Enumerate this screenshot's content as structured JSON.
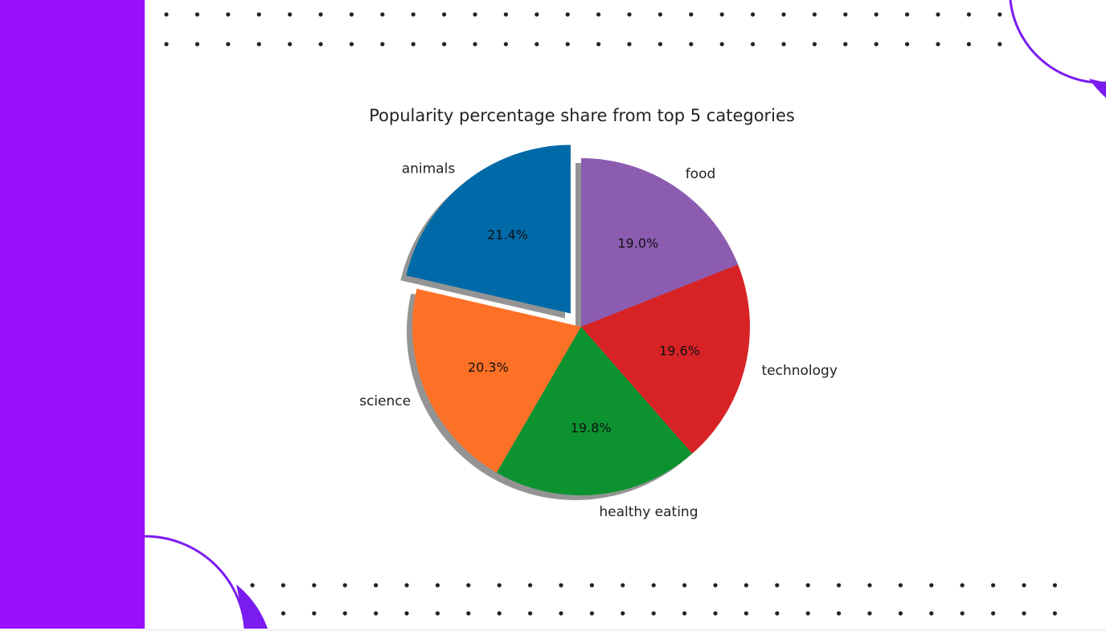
{
  "colors": {
    "sidebar": "#9a10fb",
    "accent": "#7a1cf0",
    "dots": "#222222",
    "background": "#ffffff"
  },
  "chart_data": {
    "type": "pie",
    "title": "Popularity percentage share from top 5 categories",
    "start_angle_deg": 90,
    "direction": "counterclockwise",
    "shadow": true,
    "exploded": "animals",
    "slices": [
      {
        "label": "animals",
        "value": 21.4,
        "pct_label": "21.4%",
        "color": "#006aa8"
      },
      {
        "label": "science",
        "value": 20.3,
        "pct_label": "20.3%",
        "color": "#fd7127"
      },
      {
        "label": "healthy eating",
        "value": 19.8,
        "pct_label": "19.8%",
        "color": "#0c9330"
      },
      {
        "label": "technology",
        "value": 19.6,
        "pct_label": "19.6%",
        "color": "#d82326"
      },
      {
        "label": "food",
        "value": 19.0,
        "pct_label": "19.0%",
        "color": "#8b5cb0"
      }
    ]
  }
}
